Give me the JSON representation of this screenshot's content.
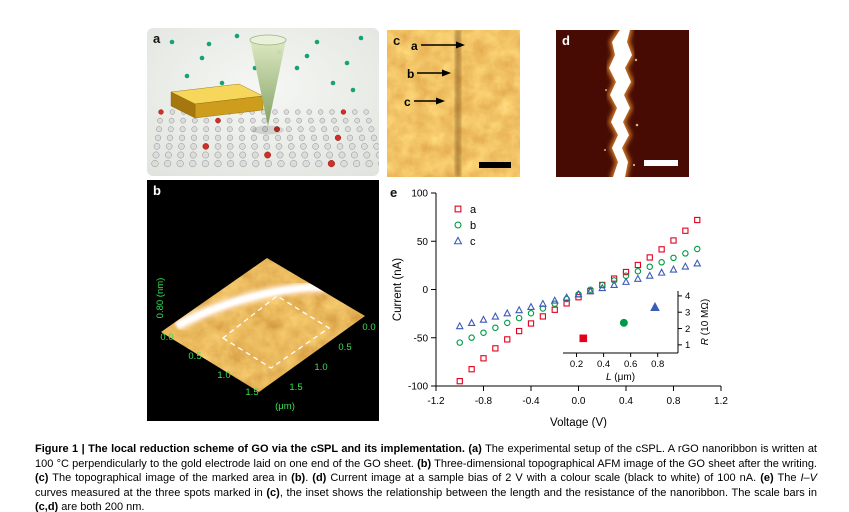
{
  "figure_label": "Figure 1",
  "panel_labels": {
    "a": "a",
    "b": "b",
    "c": "c",
    "d": "d",
    "e": "e"
  },
  "panel_b": {
    "z_axis": "0.80 (nm)",
    "x_ticks": [
      "0.0",
      "0.5",
      "1.0",
      "1.5"
    ],
    "x_unit": "(μm)",
    "y_ticks": [
      "0.0",
      "0.5",
      "1.0",
      "1.5"
    ]
  },
  "panel_c": {
    "spot_labels": [
      "a",
      "b",
      "c"
    ]
  },
  "chart_data": {
    "type": "scatter",
    "title": "",
    "xlabel": "Voltage (V)",
    "ylabel": "Current (nA)",
    "xlim": [
      -1.2,
      1.2
    ],
    "ylim": [
      -100,
      100
    ],
    "xtick_vals": [
      -1.2,
      -0.8,
      -0.4,
      0.0,
      0.4,
      0.8,
      1.2
    ],
    "xtick_labels": [
      "-1.2",
      "-0.8",
      "-0.4",
      "0.0",
      "0.4",
      "0.8",
      "1.2"
    ],
    "ytick_vals": [
      100,
      50,
      0,
      -50,
      -100
    ],
    "ytick_labels": [
      "100",
      "50",
      "0",
      "-50",
      "-100"
    ],
    "grid": false,
    "legend_position": "upper-left",
    "x": [
      -1.0,
      -0.9,
      -0.8,
      -0.7,
      -0.6,
      -0.5,
      -0.4,
      -0.3,
      -0.2,
      -0.1,
      0.0,
      0.1,
      0.2,
      0.3,
      0.4,
      0.5,
      0.6,
      0.7,
      0.8,
      0.9,
      1.0
    ],
    "series": [
      {
        "name": "a",
        "marker": "square",
        "color": "#e2001e",
        "values": [
          -95,
          -82.6,
          -71.3,
          -61,
          -51.7,
          -43.1,
          -35.2,
          -27.9,
          -21,
          -14.4,
          -8,
          -1.7,
          4.7,
          11.3,
          18.1,
          25.4,
          33.2,
          41.6,
          50.8,
          60.9,
          72
        ]
      },
      {
        "name": "b",
        "marker": "circle",
        "color": "#009a46",
        "values": [
          -55,
          -49.9,
          -44.8,
          -39.7,
          -34.6,
          -29.6,
          -24.6,
          -19.7,
          -14.8,
          -9.9,
          -5,
          -0.2,
          4.6,
          9.4,
          14.2,
          18.9,
          23.6,
          28.2,
          32.8,
          37.4,
          42
        ]
      },
      {
        "name": "c",
        "marker": "triangle",
        "color": "#3d5cb8",
        "values": [
          -38,
          -34.7,
          -31.3,
          -28,
          -24.7,
          -21.4,
          -18.1,
          -14.8,
          -11.5,
          -8.3,
          -5,
          -1.8,
          1.5,
          4.7,
          7.9,
          11.1,
          14.3,
          17.5,
          20.7,
          23.8,
          27
        ]
      }
    ],
    "inset": {
      "xlabel_var": "L",
      "xlabel_rest": " (μm)",
      "ylabel_var": "R",
      "ylabel_rest": " (10 MΩ)",
      "xlim": [
        0.1,
        0.95
      ],
      "ylim": [
        0.5,
        4.3
      ],
      "xtick_vals": [
        0.2,
        0.4,
        0.6,
        0.8
      ],
      "xtick_labels": [
        "0.2",
        "0.4",
        "0.6",
        "0.8"
      ],
      "ytick_vals": [
        1,
        2,
        3,
        4
      ],
      "ytick_labels": [
        "1",
        "2",
        "3",
        "4"
      ],
      "points": [
        {
          "series": "a",
          "L": 0.25,
          "R": 1.4
        },
        {
          "series": "b",
          "L": 0.55,
          "R": 2.35
        },
        {
          "series": "c",
          "L": 0.78,
          "R": 3.3
        }
      ]
    }
  },
  "caption": {
    "segments": [
      [
        "b",
        "Figure 1 | The local reduction scheme of GO via the cSPL and its implementation. "
      ],
      [
        "b",
        "(a)"
      ],
      [
        "n",
        " The experimental setup of the cSPL. A rGO nanoribbon is written at 100 °C perpendicularly to the gold electrode laid on one end of the GO sheet. "
      ],
      [
        "b",
        "(b)"
      ],
      [
        "n",
        " Three-dimensional topographical AFM image of the GO sheet after the writing. "
      ],
      [
        "b",
        "(c)"
      ],
      [
        "n",
        " The topographical image of the marked area in "
      ],
      [
        "b",
        "(b)"
      ],
      [
        "n",
        ". "
      ],
      [
        "b",
        "(d)"
      ],
      [
        "n",
        " Current image at a sample bias of 2 V with a colour scale (black to white) of 100 nA. "
      ],
      [
        "b",
        "(e)"
      ],
      [
        "n",
        " The "
      ],
      [
        "i",
        "I"
      ],
      [
        "n",
        "–"
      ],
      [
        "i",
        "V"
      ],
      [
        "n",
        " curves measured at the three spots marked in "
      ],
      [
        "b",
        "(c)"
      ],
      [
        "n",
        ", the inset shows the relationship between the length and the resistance of the nanoribbon. The scale bars in "
      ],
      [
        "b",
        "(c,d)"
      ],
      [
        "n",
        " are both 200 nm."
      ]
    ]
  }
}
